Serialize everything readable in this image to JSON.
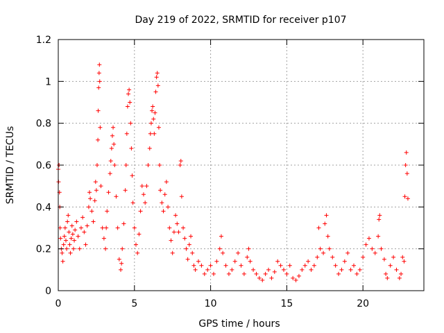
{
  "chart_data": {
    "type": "scatter",
    "title": "Day 219 of 2022, SRMTID for receiver p107",
    "xlabel": "GPS time / hours",
    "ylabel": "SRMTID / TECUs",
    "xlim": [
      0,
      24
    ],
    "ylim": [
      0,
      1.2
    ],
    "xticks": [
      0,
      5,
      10,
      15,
      20
    ],
    "xtick_labels": [
      "0",
      "5",
      "10",
      "15",
      "20"
    ],
    "yticks": [
      0,
      0.2,
      0.4,
      0.6,
      0.8,
      1,
      1.2
    ],
    "ytick_labels": [
      "0",
      "0.2",
      "0.4",
      "0.6",
      "0.8",
      "1",
      "1.2"
    ],
    "grid": true,
    "marker": "plus",
    "color": "#ff0000",
    "series": [
      {
        "name": "SRMTID",
        "points": [
          [
            0.0,
            0.58
          ],
          [
            0.02,
            0.52
          ],
          [
            0.05,
            0.6
          ],
          [
            0.08,
            0.47
          ],
          [
            0.1,
            0.4
          ],
          [
            0.12,
            0.3
          ],
          [
            0.15,
            0.25
          ],
          [
            0.2,
            0.2
          ],
          [
            0.25,
            0.18
          ],
          [
            0.3,
            0.14
          ],
          [
            0.35,
            0.22
          ],
          [
            0.4,
            0.26
          ],
          [
            0.45,
            0.3
          ],
          [
            0.5,
            0.24
          ],
          [
            0.55,
            0.2
          ],
          [
            0.6,
            0.33
          ],
          [
            0.65,
            0.36
          ],
          [
            0.7,
            0.28
          ],
          [
            0.75,
            0.22
          ],
          [
            0.8,
            0.18
          ],
          [
            0.85,
            0.25
          ],
          [
            0.9,
            0.31
          ],
          [
            0.95,
            0.27
          ],
          [
            1.0,
            0.2
          ],
          [
            1.05,
            0.24
          ],
          [
            1.1,
            0.29
          ],
          [
            1.2,
            0.33
          ],
          [
            1.3,
            0.26
          ],
          [
            1.4,
            0.2
          ],
          [
            1.5,
            0.3
          ],
          [
            1.6,
            0.35
          ],
          [
            1.7,
            0.28
          ],
          [
            1.8,
            0.22
          ],
          [
            1.9,
            0.31
          ],
          [
            2.0,
            0.4
          ],
          [
            2.05,
            0.47
          ],
          [
            2.1,
            0.44
          ],
          [
            2.2,
            0.38
          ],
          [
            2.3,
            0.33
          ],
          [
            2.4,
            0.43
          ],
          [
            2.45,
            0.52
          ],
          [
            2.5,
            0.48
          ],
          [
            2.55,
            0.6
          ],
          [
            2.6,
            0.72
          ],
          [
            2.62,
            0.86
          ],
          [
            2.65,
            0.97
          ],
          [
            2.68,
            1.04
          ],
          [
            2.7,
            1.08
          ],
          [
            2.72,
            1.0
          ],
          [
            2.75,
            0.78
          ],
          [
            2.8,
            0.5
          ],
          [
            2.9,
            0.3
          ],
          [
            3.0,
            0.25
          ],
          [
            3.1,
            0.2
          ],
          [
            3.15,
            0.3
          ],
          [
            3.2,
            0.38
          ],
          [
            3.3,
            0.47
          ],
          [
            3.4,
            0.56
          ],
          [
            3.45,
            0.62
          ],
          [
            3.5,
            0.68
          ],
          [
            3.55,
            0.74
          ],
          [
            3.6,
            0.78
          ],
          [
            3.65,
            0.7
          ],
          [
            3.7,
            0.6
          ],
          [
            3.8,
            0.45
          ],
          [
            3.9,
            0.3
          ],
          [
            4.0,
            0.15
          ],
          [
            4.1,
            0.1
          ],
          [
            4.15,
            0.13
          ],
          [
            4.2,
            0.2
          ],
          [
            4.3,
            0.32
          ],
          [
            4.4,
            0.48
          ],
          [
            4.45,
            0.6
          ],
          [
            4.5,
            0.75
          ],
          [
            4.55,
            0.88
          ],
          [
            4.6,
            0.94
          ],
          [
            4.65,
            0.96
          ],
          [
            4.7,
            0.9
          ],
          [
            4.75,
            0.8
          ],
          [
            4.8,
            0.68
          ],
          [
            4.85,
            0.55
          ],
          [
            4.9,
            0.42
          ],
          [
            5.0,
            0.3
          ],
          [
            5.1,
            0.22
          ],
          [
            5.2,
            0.18
          ],
          [
            5.3,
            0.27
          ],
          [
            5.4,
            0.38
          ],
          [
            5.5,
            0.5
          ],
          [
            5.6,
            0.46
          ],
          [
            5.7,
            0.42
          ],
          [
            5.8,
            0.5
          ],
          [
            5.9,
            0.6
          ],
          [
            6.0,
            0.68
          ],
          [
            6.05,
            0.75
          ],
          [
            6.1,
            0.8
          ],
          [
            6.15,
            0.86
          ],
          [
            6.2,
            0.88
          ],
          [
            6.25,
            0.82
          ],
          [
            6.3,
            0.75
          ],
          [
            6.35,
            0.85
          ],
          [
            6.4,
            0.95
          ],
          [
            6.45,
            1.02
          ],
          [
            6.5,
            1.04
          ],
          [
            6.55,
            0.98
          ],
          [
            6.6,
            0.78
          ],
          [
            6.65,
            0.6
          ],
          [
            6.7,
            0.48
          ],
          [
            6.8,
            0.42
          ],
          [
            6.9,
            0.38
          ],
          [
            7.0,
            0.46
          ],
          [
            7.1,
            0.52
          ],
          [
            7.2,
            0.4
          ],
          [
            7.3,
            0.3
          ],
          [
            7.4,
            0.24
          ],
          [
            7.5,
            0.18
          ],
          [
            7.6,
            0.28
          ],
          [
            7.7,
            0.36
          ],
          [
            7.8,
            0.32
          ],
          [
            7.9,
            0.28
          ],
          [
            8.0,
            0.6
          ],
          [
            8.05,
            0.62
          ],
          [
            8.1,
            0.45
          ],
          [
            8.2,
            0.3
          ],
          [
            8.3,
            0.25
          ],
          [
            8.4,
            0.2
          ],
          [
            8.5,
            0.15
          ],
          [
            8.6,
            0.22
          ],
          [
            8.7,
            0.26
          ],
          [
            8.8,
            0.18
          ],
          [
            8.9,
            0.12
          ],
          [
            9.0,
            0.1
          ],
          [
            9.2,
            0.14
          ],
          [
            9.4,
            0.12
          ],
          [
            9.6,
            0.08
          ],
          [
            9.8,
            0.1
          ],
          [
            10.0,
            0.12
          ],
          [
            10.2,
            0.08
          ],
          [
            10.4,
            0.14
          ],
          [
            10.6,
            0.2
          ],
          [
            10.7,
            0.26
          ],
          [
            10.8,
            0.18
          ],
          [
            11.0,
            0.12
          ],
          [
            11.2,
            0.08
          ],
          [
            11.4,
            0.1
          ],
          [
            11.6,
            0.14
          ],
          [
            11.8,
            0.18
          ],
          [
            12.0,
            0.12
          ],
          [
            12.2,
            0.08
          ],
          [
            12.4,
            0.16
          ],
          [
            12.5,
            0.2
          ],
          [
            12.6,
            0.14
          ],
          [
            12.8,
            0.1
          ],
          [
            13.0,
            0.08
          ],
          [
            13.2,
            0.06
          ],
          [
            13.4,
            0.05
          ],
          [
            13.6,
            0.08
          ],
          [
            13.8,
            0.1
          ],
          [
            14.0,
            0.06
          ],
          [
            14.2,
            0.09
          ],
          [
            14.4,
            0.14
          ],
          [
            14.6,
            0.12
          ],
          [
            14.8,
            0.1
          ],
          [
            15.0,
            0.08
          ],
          [
            15.2,
            0.12
          ],
          [
            15.4,
            0.06
          ],
          [
            15.6,
            0.05
          ],
          [
            15.8,
            0.07
          ],
          [
            16.0,
            0.1
          ],
          [
            16.2,
            0.12
          ],
          [
            16.4,
            0.14
          ],
          [
            16.6,
            0.1
          ],
          [
            16.8,
            0.12
          ],
          [
            17.0,
            0.16
          ],
          [
            17.1,
            0.3
          ],
          [
            17.2,
            0.2
          ],
          [
            17.4,
            0.18
          ],
          [
            17.5,
            0.32
          ],
          [
            17.6,
            0.36
          ],
          [
            17.7,
            0.26
          ],
          [
            17.8,
            0.2
          ],
          [
            18.0,
            0.16
          ],
          [
            18.2,
            0.12
          ],
          [
            18.4,
            0.08
          ],
          [
            18.6,
            0.1
          ],
          [
            18.8,
            0.14
          ],
          [
            19.0,
            0.18
          ],
          [
            19.2,
            0.1
          ],
          [
            19.4,
            0.12
          ],
          [
            19.6,
            0.08
          ],
          [
            19.8,
            0.1
          ],
          [
            20.0,
            0.16
          ],
          [
            20.2,
            0.22
          ],
          [
            20.4,
            0.25
          ],
          [
            20.6,
            0.2
          ],
          [
            20.8,
            0.18
          ],
          [
            21.0,
            0.26
          ],
          [
            21.05,
            0.34
          ],
          [
            21.1,
            0.36
          ],
          [
            21.2,
            0.2
          ],
          [
            21.4,
            0.15
          ],
          [
            21.5,
            0.08
          ],
          [
            21.6,
            0.06
          ],
          [
            21.8,
            0.12
          ],
          [
            22.0,
            0.16
          ],
          [
            22.2,
            0.1
          ],
          [
            22.4,
            0.06
          ],
          [
            22.5,
            0.08
          ],
          [
            22.6,
            0.16
          ],
          [
            22.7,
            0.14
          ],
          [
            22.75,
            0.45
          ],
          [
            22.8,
            0.6
          ],
          [
            22.85,
            0.66
          ],
          [
            22.9,
            0.56
          ],
          [
            22.95,
            0.44
          ]
        ]
      }
    ]
  }
}
